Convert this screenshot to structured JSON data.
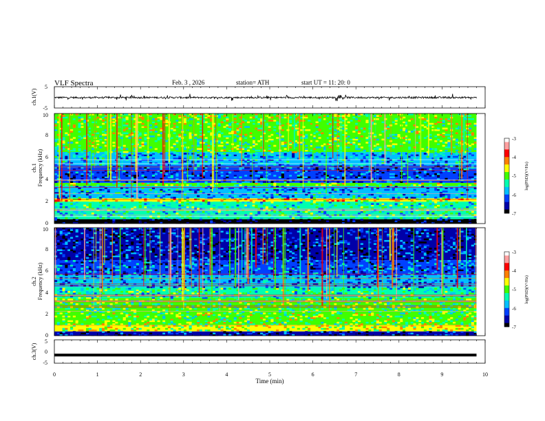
{
  "header": {
    "title": "VLF  Spectra",
    "date": "Feb. 3  , 2026",
    "station": "station= ATH",
    "start": "start  UT  =    11: 20: 0"
  },
  "chart_data": [
    {
      "type": "line",
      "id": "ch1",
      "ylabel": "ch.1(V)",
      "ylim": [
        -5,
        5
      ],
      "yticks": [
        "5",
        "-5"
      ],
      "baseline": -0.1,
      "series": [
        {
          "description": "noisy broadband voltage trace around -0.1 V with spikes up to about +/-1.5 V"
        }
      ]
    },
    {
      "type": "heatmap",
      "id": "ch1-spec",
      "ylabel": "ch.1\nFrequency (kHz)",
      "ylim": [
        0,
        10
      ],
      "yticks": [
        "0",
        "2",
        "4",
        "6",
        "8",
        "10"
      ],
      "xlim": [
        0,
        9.8
      ],
      "colorbar": {
        "label": "log(PSD)(V²/Hz)",
        "range": [
          -7,
          -3
        ],
        "ticks": [
          "-3",
          "-4",
          "-5",
          "-6",
          "-7"
        ]
      },
      "bands": [
        {
          "from": 0,
          "to": 0.4,
          "level": -7
        },
        {
          "from": 0.4,
          "to": 1.2,
          "level": -5.5
        },
        {
          "from": 1.2,
          "to": 2.0,
          "level": -5.4
        },
        {
          "from": 2.0,
          "to": 2.3,
          "level": -4.5
        },
        {
          "from": 2.3,
          "to": 3.4,
          "level": -5.9
        },
        {
          "from": 3.4,
          "to": 3.7,
          "level": -5.0
        },
        {
          "from": 3.7,
          "to": 5.3,
          "level": -6.3
        },
        {
          "from": 5.3,
          "to": 6.5,
          "level": -5.9
        },
        {
          "from": 6.5,
          "to": 8.0,
          "level": -5.1
        },
        {
          "from": 8.0,
          "to": 10.0,
          "level": -4.9
        }
      ]
    },
    {
      "type": "heatmap",
      "id": "ch2-spec",
      "ylabel": "ch.2\nFrequency (kHz)",
      "ylim": [
        0,
        10
      ],
      "yticks": [
        "0",
        "2",
        "4",
        "6",
        "8",
        "10"
      ],
      "xlim": [
        0,
        9.8
      ],
      "colorbar": {
        "label": "log(PSD)(V²/Hz)",
        "range": [
          -7,
          -3
        ],
        "ticks": [
          "-3",
          "-4",
          "-5",
          "-6",
          "-7"
        ]
      },
      "bands": [
        {
          "from": 0,
          "to": 0.4,
          "level": -6.5
        },
        {
          "from": 0.4,
          "to": 1.0,
          "level": -4.8
        },
        {
          "from": 1.0,
          "to": 2.2,
          "level": -5.0
        },
        {
          "from": 2.2,
          "to": 3.5,
          "level": -5.2
        },
        {
          "from": 3.5,
          "to": 4.5,
          "level": -5.4
        },
        {
          "from": 4.5,
          "to": 5.6,
          "level": -6.0
        },
        {
          "from": 5.6,
          "to": 7.0,
          "level": -6.2
        },
        {
          "from": 7.0,
          "to": 10.0,
          "level": -6.4
        }
      ]
    },
    {
      "type": "line",
      "id": "ch3",
      "ylabel": "ch.3(V)",
      "ylim": [
        -5,
        5
      ],
      "yticks": [
        "5",
        "0",
        "-5"
      ],
      "baseline": -1.5,
      "series": [
        {
          "description": "flat thick trace at about -1.5 V"
        }
      ]
    }
  ],
  "xaxis": {
    "label": "Time  (min)",
    "range": [
      0,
      10
    ],
    "ticks": [
      "0",
      "1",
      "2",
      "3",
      "4",
      "5",
      "6",
      "7",
      "8",
      "9",
      "10"
    ]
  },
  "colors": {
    "colormap": [
      "#000000",
      "#0000a8",
      "#0040ff",
      "#00c0ff",
      "#00ffb0",
      "#40ff00",
      "#ffff00",
      "#ff8000",
      "#ff0000",
      "#ffa0a0",
      "#ffffff"
    ]
  }
}
